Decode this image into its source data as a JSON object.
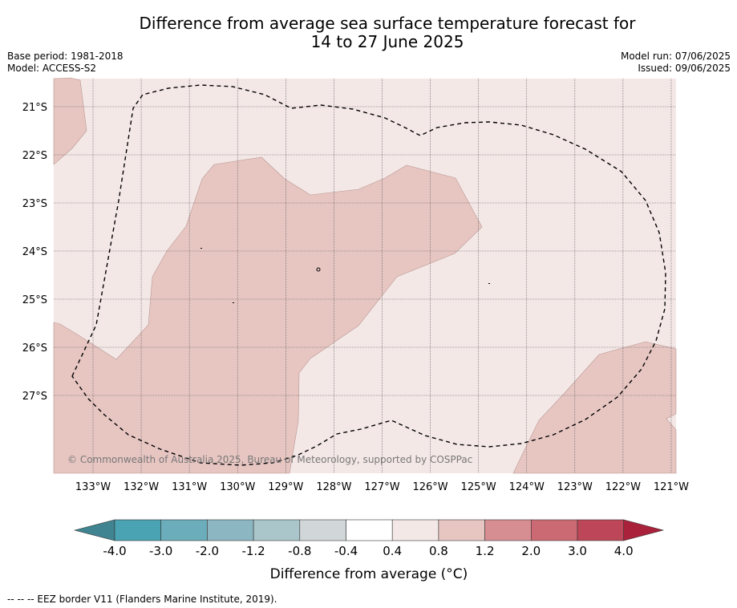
{
  "title_line1": "Difference from average sea surface temperature forecast for",
  "title_line2": "14 to 27 June 2025",
  "meta": {
    "base_period": "Base period: 1981-2018",
    "model": "Model: ACCESS-S2",
    "model_run": "Model run: 07/06/2025",
    "issued": "Issued: 09/06/2025"
  },
  "map": {
    "background_category": "0.4 to 0.8",
    "warm_region_category": "0.8 to 1.2",
    "colors": {
      "cat_0_4_0_8": "#f4e8e7",
      "cat_0_8_1_2": "#e7c6c2",
      "gridline": "#555555",
      "eez_border": "#000000"
    },
    "lat_labels": [
      "21°S",
      "22°S",
      "23°S",
      "24°S",
      "25°S",
      "26°S",
      "27°S"
    ],
    "lon_labels": [
      "133°W",
      "132°W",
      "131°W",
      "130°W",
      "129°W",
      "128°W",
      "127°W",
      "126°W",
      "125°W",
      "124°W",
      "123°W",
      "122°W",
      "121°W"
    ],
    "copyright": "© Commonwealth of Australia 2025, Bureau of Meteorology, supported by COSPPac"
  },
  "colorbar": {
    "label": "Difference from average (°C)",
    "ticks": [
      "-4.0",
      "-3.0",
      "-2.0",
      "-1.2",
      "-0.8",
      "-0.4",
      "0.4",
      "0.8",
      "1.2",
      "2.0",
      "3.0",
      "4.0"
    ],
    "under_color": "#3f8490",
    "over_color": "#a9213b",
    "colors": [
      "#4aa3b3",
      "#6badba",
      "#8cb7c2",
      "#aac6ca",
      "#d1d6d9",
      "#ffffff",
      "#f4e8e7",
      "#e7c6c2",
      "#d78e93",
      "#cc6a74",
      "#bd4658"
    ]
  },
  "footnote": "-- -- -- EEZ border V11 (Flanders Marine Institute, 2019)."
}
